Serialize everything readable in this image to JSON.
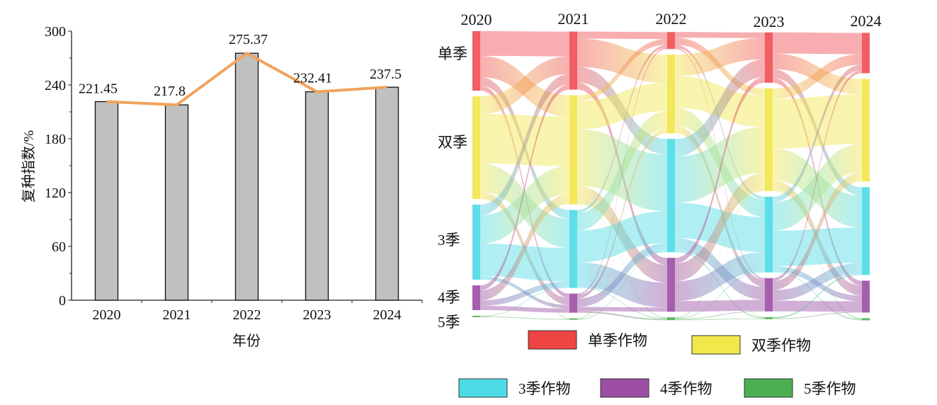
{
  "chart_data": [
    {
      "type": "bar",
      "title": "",
      "xlabel": "年份",
      "ylabel": "复种指数/%",
      "categories": [
        "2020",
        "2021",
        "2022",
        "2023",
        "2024"
      ],
      "values": [
        221.45,
        217.8,
        275.37,
        232.41,
        237.5
      ],
      "data_labels": [
        "221.45",
        "217.8",
        "275.37",
        "232.41",
        "237.5"
      ],
      "line_overlay": true,
      "ylim": [
        0,
        300
      ],
      "yticks": [
        0,
        60,
        120,
        180,
        240,
        300
      ],
      "ytick_labels": [
        "0",
        "60",
        "120",
        "180",
        "240",
        "300"
      ],
      "grid": false,
      "colors": {
        "bar": "#c0c0c0",
        "line": "#f0a35e"
      }
    },
    {
      "type": "sankey",
      "years": [
        "2020",
        "2021",
        "2022",
        "2023",
        "2024"
      ],
      "categories": [
        "单季",
        "双季",
        "3季",
        "4季",
        "5季"
      ],
      "legend": [
        "单季作物",
        "双季作物",
        "3季作物",
        "4季作物",
        "5季作物"
      ],
      "colors": [
        "#ef4c52",
        "#f2e64a",
        "#4ddbe5",
        "#9b4ea3",
        "#4caf50"
      ],
      "node_values": [
        [
          84,
          145,
          106,
          35,
          2
        ],
        [
          82,
          154,
          110,
          27,
          2
        ],
        [
          24,
          111,
          160,
          76,
          4
        ],
        [
          71,
          145,
          107,
          47,
          3
        ],
        [
          57,
          145,
          124,
          45,
          3
        ]
      ],
      "flows": [
        [
          [
            35,
            30,
            12,
            6,
            1
          ],
          [
            25,
            70,
            40,
            10,
            0
          ],
          [
            15,
            40,
            46,
            5,
            0
          ],
          [
            7,
            14,
            8,
            6,
            0
          ],
          [
            0,
            0,
            1,
            0,
            1
          ]
        ],
        [
          [
            10,
            40,
            22,
            10,
            0
          ],
          [
            8,
            40,
            80,
            25,
            1
          ],
          [
            4,
            25,
            45,
            35,
            1
          ],
          [
            2,
            5,
            12,
            6,
            2
          ],
          [
            0,
            1,
            1,
            0,
            0
          ]
        ],
        [
          [
            8,
            10,
            4,
            2,
            0
          ],
          [
            30,
            45,
            25,
            10,
            1
          ],
          [
            25,
            65,
            50,
            18,
            2
          ],
          [
            8,
            25,
            28,
            15,
            0
          ],
          [
            0,
            1,
            1,
            1,
            1
          ]
        ],
        [
          [
            30,
            22,
            12,
            7,
            0
          ],
          [
            15,
            70,
            45,
            14,
            1
          ],
          [
            8,
            40,
            50,
            8,
            1
          ],
          [
            4,
            13,
            15,
            15,
            0
          ],
          [
            0,
            0,
            2,
            1,
            0
          ]
        ]
      ]
    }
  ]
}
